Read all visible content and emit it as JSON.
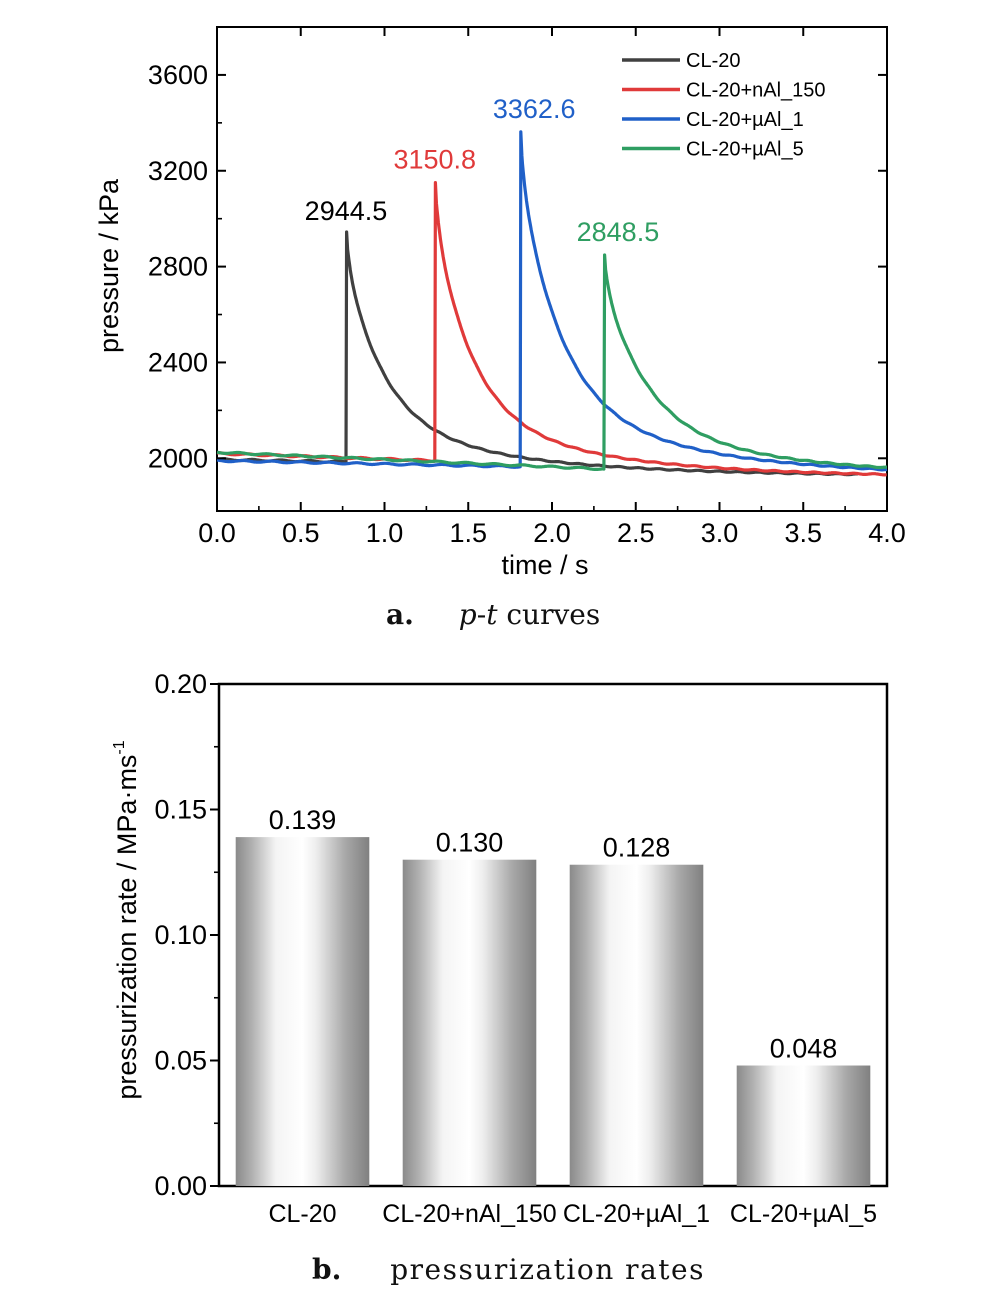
{
  "chart_data": [
    {
      "type": "line",
      "xlabel": "time / s",
      "ylabel": "pressure / kPa",
      "xlim": [
        0.0,
        4.0
      ],
      "ylim": [
        1780,
        3800
      ],
      "x_ticks": [
        0.0,
        0.5,
        1.0,
        1.5,
        2.0,
        2.5,
        3.0,
        3.5,
        4.0
      ],
      "x_tick_labels": [
        "0.0",
        "0.5",
        "1.0",
        "1.5",
        "2.0",
        "2.5",
        "3.0",
        "3.5",
        "4.0"
      ],
      "y_ticks": [
        2000,
        2400,
        2800,
        3200,
        3600
      ],
      "y_tick_labels": [
        "2000",
        "2400",
        "2800",
        "3200",
        "3600"
      ],
      "grid": false,
      "legend_position": "top-right",
      "caption_label": "a.",
      "caption_text_1": "p",
      "caption_text_2": "-",
      "caption_text_3": "t",
      "caption_text_4": " curves",
      "series": [
        {
          "name": "CL-20",
          "color": "#404040",
          "start_t": 0.0,
          "start_p": 1995,
          "base_end_p": 1985,
          "rise_t": 0.77,
          "peak_p": 2944.5,
          "decay_tau": 0.23,
          "end_t": 3.83,
          "final_p": 1925,
          "peak_label": "2944.5"
        },
        {
          "name": "CL-20+nAl_150",
          "color": "#e03a3a",
          "start_t": 0.0,
          "start_p": 2020,
          "base_end_p": 1990,
          "rise_t": 1.3,
          "peak_p": 3150.8,
          "decay_tau": 0.22,
          "end_t": 4.0,
          "final_p": 1920,
          "peak_label": "3150.8"
        },
        {
          "name": "CL-20+µAl_1",
          "color": "#2060c8",
          "start_t": 0.0,
          "start_p": 1990,
          "base_end_p": 1965,
          "rise_t": 1.81,
          "peak_p": 3362.6,
          "decay_tau": 0.24,
          "end_t": 4.0,
          "final_p": 1920,
          "peak_label": "3362.6"
        },
        {
          "name": "CL-20+µAl_5",
          "color": "#2f9e62",
          "start_t": 0.0,
          "start_p": 2025,
          "base_end_p": 1955,
          "rise_t": 2.31,
          "peak_p": 2848.5,
          "decay_tau": 0.26,
          "end_t": 4.0,
          "final_p": 1920,
          "peak_label": "2848.5"
        }
      ]
    },
    {
      "type": "bar",
      "ylabel": "pressurization rate / MPa·ms",
      "ylabel_superscript": "-1",
      "categories": [
        "CL-20",
        "CL-20+nAl_150",
        "CL-20+µAl_1",
        "CL-20+µAl_5"
      ],
      "values": [
        0.139,
        0.13,
        0.128,
        0.048
      ],
      "value_labels": [
        "0.139",
        "0.130",
        "0.128",
        "0.048"
      ],
      "ylim": [
        0.0,
        0.2
      ],
      "y_ticks": [
        0.0,
        0.05,
        0.1,
        0.15,
        0.2
      ],
      "y_tick_labels": [
        "0.00",
        "0.05",
        "0.10",
        "0.15",
        "0.20"
      ],
      "grid": false,
      "caption_label": "b.",
      "caption_text": "pressurization rates"
    }
  ]
}
